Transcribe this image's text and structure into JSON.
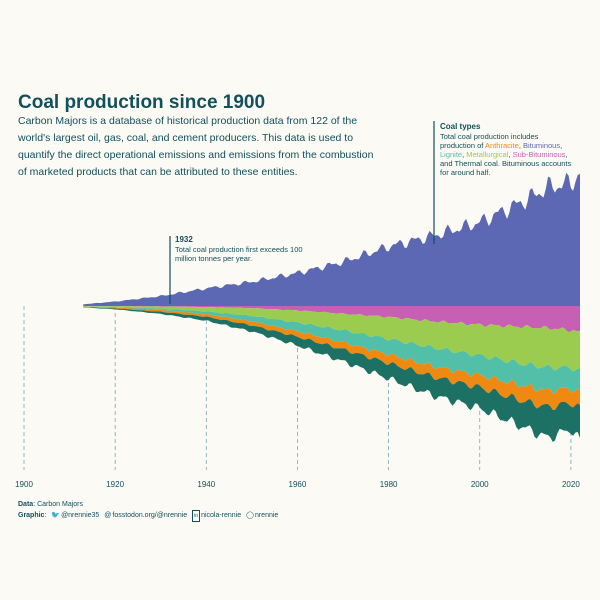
{
  "title": "Coal production since 1900",
  "subtitle": "Carbon Majors is a database of historical production data from 122 of the world's largest oil, gas, coal, and cement producers. This data is used to quantify the direct operational emissions and emissions from the combustion of marketed products that can be attributed to these entities.",
  "annotations": {
    "a1932": {
      "title": "1932",
      "line1": "Total coal production first exceeds 100",
      "line2": "million tonnes per year."
    },
    "types": {
      "title": "Coal types",
      "line1": "Total coal production includes",
      "line2_prefix": "production of ",
      "anthracite": "Anthracite",
      "bituminous": "Bituminous",
      "lignite": "Lignite",
      "metallurgical": "Metallurgical",
      "subbituminous": "Sub-Bituminous",
      "line3_suffix": " Bituminous accounts",
      "line4_prefix": "and ",
      "thermal": "Thermal coal",
      "line4_suffix": ".",
      "line5": "for around half."
    }
  },
  "caption": {
    "data_label": "Data",
    "data_value": "Carbon Majors",
    "graphic_label": "Graphic",
    "twitter": "@nrennie35",
    "mastodon": "fosstodon.org/@nrennie",
    "linkedin": "nicola-rennie",
    "github": "nrennie"
  },
  "icons": {
    "twitter": "twitter-icon",
    "mastodon": "mastodon-icon",
    "linkedin": "linkedin-icon",
    "github": "github-icon"
  },
  "colors": {
    "background": "#fbfaf4",
    "text": "#12505c",
    "Bituminous": "#5c68b4",
    "Sub-Bituminous": "#c760b4",
    "Metallurgical": "#9ccc4f",
    "Lignite": "#52bfa8",
    "Anthracite": "#ee8a12",
    "Thermal": "#1d7164",
    "gridline": "#7aa6b7"
  },
  "chart_data": {
    "type": "area",
    "subtype": "stream",
    "x_ticks": [
      1900,
      1920,
      1940,
      1960,
      1980,
      2000,
      2020
    ],
    "xlim": [
      1900,
      2022
    ],
    "grid": "vertical dashed lines at tick years",
    "legend": "none (coal types named in annotation text)",
    "x": [
      1900,
      1910,
      1920,
      1930,
      1940,
      1950,
      1960,
      1970,
      1980,
      1990,
      2000,
      2010,
      2015,
      2020,
      2022
    ],
    "series": [
      {
        "name": "Bituminous",
        "values": [
          0,
          3,
          20,
          45,
          80,
          110,
          150,
          200,
          270,
          320,
          380,
          480,
          540,
          560,
          600
        ]
      },
      {
        "name": "Sub-Bituminous",
        "values": [
          0,
          0,
          1,
          2,
          5,
          10,
          20,
          35,
          50,
          70,
          85,
          95,
          100,
          110,
          120
        ]
      },
      {
        "name": "Metallurgical",
        "values": [
          0,
          1,
          4,
          10,
          20,
          35,
          55,
          75,
          100,
          120,
          140,
          170,
          180,
          170,
          175
        ]
      },
      {
        "name": "Lignite",
        "values": [
          0,
          0,
          2,
          6,
          12,
          25,
          40,
          55,
          70,
          85,
          90,
          100,
          105,
          95,
          100
        ]
      },
      {
        "name": "Anthracite",
        "values": [
          0,
          1,
          4,
          8,
          12,
          18,
          25,
          32,
          40,
          48,
          55,
          70,
          75,
          65,
          70
        ]
      },
      {
        "name": "Thermal",
        "values": [
          0,
          1,
          4,
          10,
          18,
          28,
          40,
          55,
          70,
          85,
          95,
          120,
          140,
          120,
          150
        ]
      }
    ]
  }
}
